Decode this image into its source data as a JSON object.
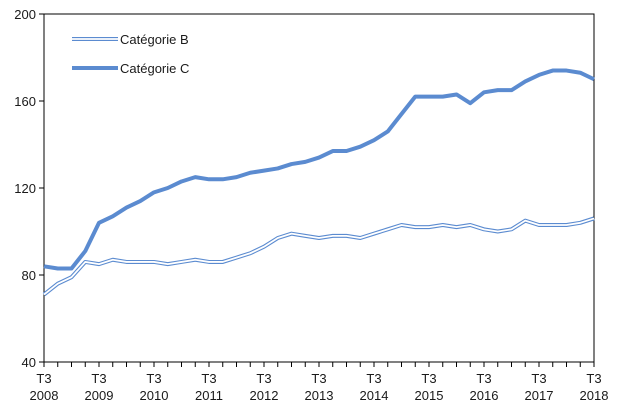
{
  "chart_data": {
    "type": "line",
    "title": "",
    "xlabel": "",
    "ylabel": "",
    "ylim": [
      40,
      200
    ],
    "yticks": [
      40,
      80,
      120,
      160,
      200
    ],
    "grid": "none",
    "legend_position": "top-left",
    "x": [
      "2008 T3",
      "2008 T4",
      "2009 T1",
      "2009 T2",
      "2009 T3",
      "2009 T4",
      "2010 T1",
      "2010 T2",
      "2010 T3",
      "2010 T4",
      "2011 T1",
      "2011 T2",
      "2011 T3",
      "2011 T4",
      "2012 T1",
      "2012 T2",
      "2012 T3",
      "2012 T4",
      "2013 T1",
      "2013 T2",
      "2013 T3",
      "2013 T4",
      "2014 T1",
      "2014 T2",
      "2014 T3",
      "2014 T4",
      "2015 T1",
      "2015 T2",
      "2015 T3",
      "2015 T4",
      "2016 T1",
      "2016 T2",
      "2016 T3",
      "2016 T4",
      "2017 T1",
      "2017 T2",
      "2017 T3",
      "2017 T4",
      "2018 T1",
      "2018 T2",
      "2018 T3"
    ],
    "x_tick_labels": [
      {
        "quarter": "T3",
        "year": "2008"
      },
      {
        "quarter": "T3",
        "year": "2009"
      },
      {
        "quarter": "T3",
        "year": "2010"
      },
      {
        "quarter": "T3",
        "year": "2011"
      },
      {
        "quarter": "T3",
        "year": "2012"
      },
      {
        "quarter": "T3",
        "year": "2013"
      },
      {
        "quarter": "T3",
        "year": "2014"
      },
      {
        "quarter": "T3",
        "year": "2015"
      },
      {
        "quarter": "T3",
        "year": "2016"
      },
      {
        "quarter": "T3",
        "year": "2017"
      },
      {
        "quarter": "T3",
        "year": "2018"
      }
    ],
    "series": [
      {
        "name": "Catégorie B",
        "color": "#5b8bd0",
        "style": "double-line",
        "values": [
          71,
          76,
          79,
          86,
          85,
          87,
          86,
          86,
          86,
          85,
          86,
          87,
          86,
          86,
          88,
          90,
          93,
          97,
          99,
          98,
          97,
          98,
          98,
          97,
          99,
          101,
          103,
          102,
          102,
          103,
          102,
          103,
          101,
          100,
          101,
          105,
          103,
          103,
          103,
          104,
          106
        ]
      },
      {
        "name": "Catégorie C",
        "color": "#5b8bd0",
        "style": "thick-line",
        "values": [
          84,
          83,
          83,
          91,
          104,
          107,
          111,
          114,
          118,
          120,
          123,
          125,
          124,
          124,
          125,
          127,
          128,
          129,
          131,
          132,
          134,
          137,
          137,
          139,
          142,
          146,
          154,
          162,
          162,
          162,
          163,
          159,
          164,
          165,
          165,
          169,
          172,
          174,
          174,
          173,
          170
        ]
      }
    ]
  }
}
